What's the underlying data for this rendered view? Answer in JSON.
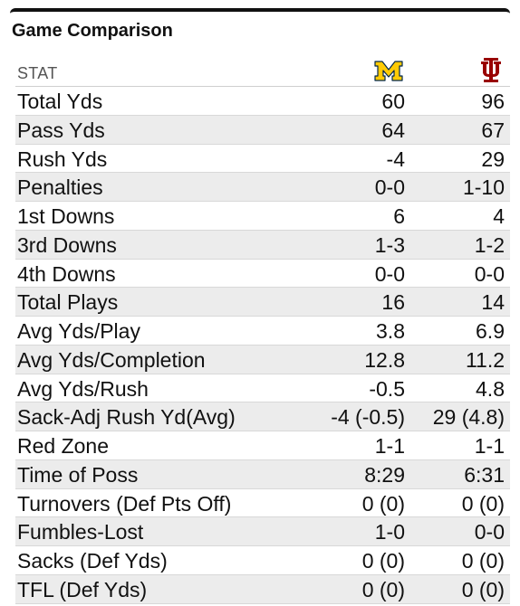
{
  "title": "Game Comparison",
  "header": {
    "stat_label": "STAT",
    "team_a_logo": "michigan-block-m-logo",
    "team_b_logo": "indiana-iu-logo",
    "team_a_color": "#FFCB05",
    "team_b_color": "#990000"
  },
  "rows": [
    {
      "stat": "Total Yds",
      "a": "60",
      "b": "96"
    },
    {
      "stat": "Pass Yds",
      "a": "64",
      "b": "67"
    },
    {
      "stat": "Rush Yds",
      "a": "-4",
      "b": "29"
    },
    {
      "stat": "Penalties",
      "a": "0-0",
      "b": "1-10"
    },
    {
      "stat": "1st Downs",
      "a": "6",
      "b": "4"
    },
    {
      "stat": "3rd Downs",
      "a": "1-3",
      "b": "1-2"
    },
    {
      "stat": "4th Downs",
      "a": "0-0",
      "b": "0-0"
    },
    {
      "stat": "Total Plays",
      "a": "16",
      "b": "14"
    },
    {
      "stat": "Avg Yds/Play",
      "a": "3.8",
      "b": "6.9"
    },
    {
      "stat": "Avg Yds/Completion",
      "a": "12.8",
      "b": "11.2"
    },
    {
      "stat": "Avg Yds/Rush",
      "a": "-0.5",
      "b": "4.8"
    },
    {
      "stat": "Sack-Adj Rush Yd(Avg)",
      "a": "-4 (-0.5)",
      "b": "29 (4.8)"
    },
    {
      "stat": "Red Zone",
      "a": "1-1",
      "b": "1-1"
    },
    {
      "stat": "Time of Poss",
      "a": "8:29",
      "b": "6:31"
    },
    {
      "stat": "Turnovers (Def Pts Off)",
      "a": "0 (0)",
      "b": "0 (0)"
    },
    {
      "stat": "Fumbles-Lost",
      "a": "1-0",
      "b": "0-0"
    },
    {
      "stat": "Sacks (Def Yds)",
      "a": "0 (0)",
      "b": "0 (0)"
    },
    {
      "stat": "TFL (Def Yds)",
      "a": "0 (0)",
      "b": "0 (0)"
    }
  ]
}
